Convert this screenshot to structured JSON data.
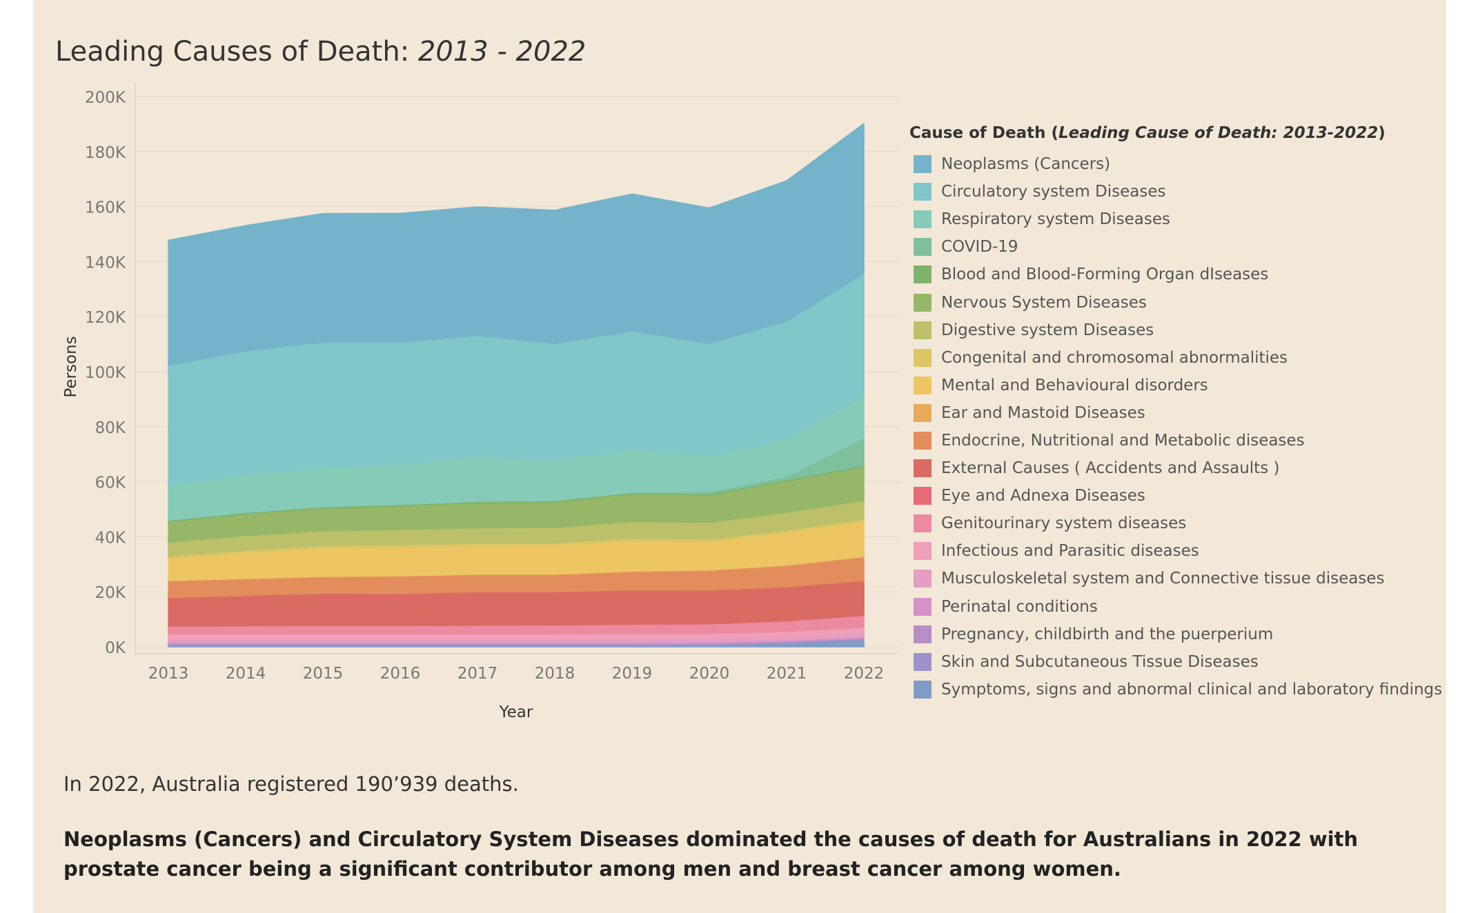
{
  "title_main": "Leading Causes of Death:",
  "title_range": "2013 - 2022",
  "legend": {
    "title_prefix": "Cause of Death (",
    "title_italic": "Leading Cause of Death: 2013-2022",
    "title_suffix": ")"
  },
  "text": {
    "summary": "In 2022, Australia registered 190’939 deaths.",
    "detail": "Neoplasms (Cancers) and Circulatory System Diseases dominated the causes of death for Australians in 2022 with prostate cancer being a significant contributor among men and breast cancer among women."
  },
  "chart_data": {
    "type": "area",
    "stacked": true,
    "xlabel": "Year",
    "ylabel": "Persons",
    "ylim": [
      0,
      200000
    ],
    "yticks": [
      0,
      20000,
      40000,
      60000,
      80000,
      100000,
      120000,
      140000,
      160000,
      180000,
      200000
    ],
    "ytick_labels": [
      "0K",
      "20K",
      "40K",
      "60K",
      "80K",
      "100K",
      "120K",
      "140K",
      "160K",
      "180K",
      "200K"
    ],
    "grid": true,
    "legend_position": "right",
    "x": [
      "2013",
      "2014",
      "2015",
      "2016",
      "2017",
      "2018",
      "2019",
      "2020",
      "2021",
      "2022"
    ],
    "series": [
      {
        "name": "Symptoms, signs and abnormal clinical and laboratory findings",
        "color": "#7f9cc6",
        "values": [
          500,
          500,
          500,
          500,
          500,
          500,
          500,
          600,
          1300,
          2500
        ]
      },
      {
        "name": "Skin and Subcutaneous Tissue Diseases",
        "color": "#9d92c8",
        "values": [
          500,
          500,
          500,
          500,
          500,
          500,
          500,
          500,
          500,
          500
        ]
      },
      {
        "name": "Pregnancy, childbirth and the puerperium",
        "color": "#b88ec6",
        "values": [
          100,
          100,
          100,
          100,
          100,
          100,
          100,
          100,
          100,
          100
        ]
      },
      {
        "name": "Perinatal conditions",
        "color": "#d492c6",
        "values": [
          600,
          600,
          600,
          600,
          600,
          600,
          600,
          600,
          600,
          600
        ]
      },
      {
        "name": "Musculoskeletal system and Connective tissue diseases",
        "color": "#e59dc2",
        "values": [
          1200,
          1200,
          1200,
          1200,
          1200,
          1200,
          1300,
          1300,
          1300,
          1400
        ]
      },
      {
        "name": "Infectious and Parasitic diseases",
        "color": "#f09fb8",
        "values": [
          1700,
          1700,
          1700,
          1700,
          1700,
          1700,
          1800,
          1700,
          1800,
          2000
        ]
      },
      {
        "name": "Genitourinary system diseases",
        "color": "#ec8aa0",
        "values": [
          2900,
          3000,
          3100,
          3100,
          3200,
          3300,
          3400,
          3500,
          3800,
          4300
        ]
      },
      {
        "name": "Eye and Adnexa Diseases",
        "color": "#e66a78",
        "values": [
          100,
          100,
          100,
          100,
          100,
          100,
          100,
          100,
          100,
          100
        ]
      },
      {
        "name": "External Causes ( Accidents and Assaults )",
        "color": "#da6b62",
        "values": [
          10300,
          11000,
          11700,
          11600,
          12100,
          12000,
          12400,
          12200,
          12300,
          12600
        ]
      },
      {
        "name": "Endocrine, Nutritional and Metabolic diseases",
        "color": "#e38d5d",
        "values": [
          6100,
          6000,
          6000,
          6300,
          6300,
          6300,
          6700,
          7200,
          7800,
          8600
        ]
      },
      {
        "name": "Ear and Mastoid Diseases",
        "color": "#e9a95a",
        "values": [
          100,
          100,
          100,
          100,
          100,
          100,
          100,
          100,
          100,
          100
        ]
      },
      {
        "name": "Mental and Behavioural disorders",
        "color": "#edc563",
        "values": [
          7900,
          9400,
          10200,
          10400,
          10300,
          10400,
          11000,
          10300,
          11800,
          12700
        ]
      },
      {
        "name": "Congenital and chromosomal abnormalities",
        "color": "#ddc663",
        "values": [
          900,
          900,
          900,
          900,
          900,
          900,
          900,
          900,
          900,
          900
        ]
      },
      {
        "name": "Digestive system Diseases",
        "color": "#bcc06a",
        "values": [
          5100,
          5300,
          5400,
          5500,
          5600,
          5700,
          6100,
          6100,
          6500,
          6800
        ]
      },
      {
        "name": "Nervous System Diseases",
        "color": "#96b768",
        "values": [
          7500,
          7900,
          8300,
          8600,
          9100,
          9200,
          10100,
          9900,
          11300,
          12200
        ]
      },
      {
        "name": "Blood and Blood-Forming Organ dIseases",
        "color": "#7fb26b",
        "values": [
          500,
          500,
          500,
          500,
          500,
          500,
          500,
          500,
          500,
          500
        ]
      },
      {
        "name": "COVID-19",
        "color": "#7dc09b",
        "values": [
          0,
          0,
          0,
          0,
          0,
          0,
          0,
          900,
          1100,
          10000
        ]
      },
      {
        "name": "Respiratory system Diseases",
        "color": "#85cbb7",
        "values": [
          12700,
          13700,
          14200,
          14700,
          16200,
          14500,
          15900,
          12800,
          13700,
          15400
        ]
      },
      {
        "name": "Circulatory system Diseases",
        "color": "#81c6c8",
        "values": [
          43600,
          45100,
          45600,
          44300,
          44100,
          42700,
          42700,
          41000,
          42900,
          44400
        ]
      },
      {
        "name": "Neoplasms (Cancers)",
        "color": "#74b3c9",
        "values": [
          45500,
          45500,
          46800,
          46900,
          46800,
          48400,
          49900,
          49200,
          51000,
          54500
        ]
      }
    ]
  }
}
